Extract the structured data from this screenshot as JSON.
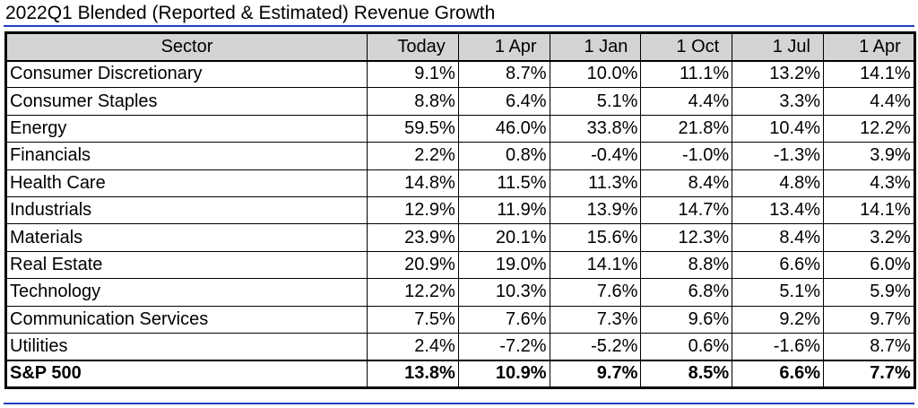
{
  "title": "2022Q1 Blended (Reported & Estimated) Revenue Growth",
  "chart_data": {
    "type": "table",
    "title": "2022Q1 Blended (Reported & Estimated) Revenue Growth",
    "columns": [
      "Sector",
      "Today",
      "1 Apr",
      "1 Jan",
      "1 Oct",
      "1 Jul",
      "1 Apr"
    ],
    "rows": [
      {
        "sector": "Consumer Discretionary",
        "values": [
          "9.1%",
          "8.7%",
          "10.0%",
          "11.1%",
          "13.2%",
          "14.1%"
        ]
      },
      {
        "sector": "Consumer Staples",
        "values": [
          "8.8%",
          "6.4%",
          "5.1%",
          "4.4%",
          "3.3%",
          "4.4%"
        ]
      },
      {
        "sector": "Energy",
        "values": [
          "59.5%",
          "46.0%",
          "33.8%",
          "21.8%",
          "10.4%",
          "12.2%"
        ]
      },
      {
        "sector": "Financials",
        "values": [
          "2.2%",
          "0.8%",
          "-0.4%",
          "-1.0%",
          "-1.3%",
          "3.9%"
        ]
      },
      {
        "sector": "Health Care",
        "values": [
          "14.8%",
          "11.5%",
          "11.3%",
          "8.4%",
          "4.8%",
          "4.3%"
        ]
      },
      {
        "sector": "Industrials",
        "values": [
          "12.9%",
          "11.9%",
          "13.9%",
          "14.7%",
          "13.4%",
          "14.1%"
        ]
      },
      {
        "sector": "Materials",
        "values": [
          "23.9%",
          "20.1%",
          "15.6%",
          "12.3%",
          "8.4%",
          "3.2%"
        ]
      },
      {
        "sector": "Real Estate",
        "values": [
          "20.9%",
          "19.0%",
          "14.1%",
          "8.8%",
          "6.6%",
          "6.0%"
        ]
      },
      {
        "sector": "Technology",
        "values": [
          "12.2%",
          "10.3%",
          "7.6%",
          "6.8%",
          "5.1%",
          "5.9%"
        ]
      },
      {
        "sector": "Communication Services",
        "values": [
          "7.5%",
          "7.6%",
          "7.3%",
          "9.6%",
          "9.2%",
          "9.7%"
        ]
      },
      {
        "sector": "Utilities",
        "values": [
          "2.4%",
          "-7.2%",
          "-5.2%",
          "0.6%",
          "-1.6%",
          "8.7%"
        ]
      }
    ],
    "total": {
      "sector": "S&P 500",
      "values": [
        "13.8%",
        "10.9%",
        "9.7%",
        "8.5%",
        "6.6%",
        "7.7%"
      ]
    }
  },
  "colors": {
    "header_bg": "#d4d4d4",
    "rule": "#1f3fbf",
    "border": "#000000"
  }
}
